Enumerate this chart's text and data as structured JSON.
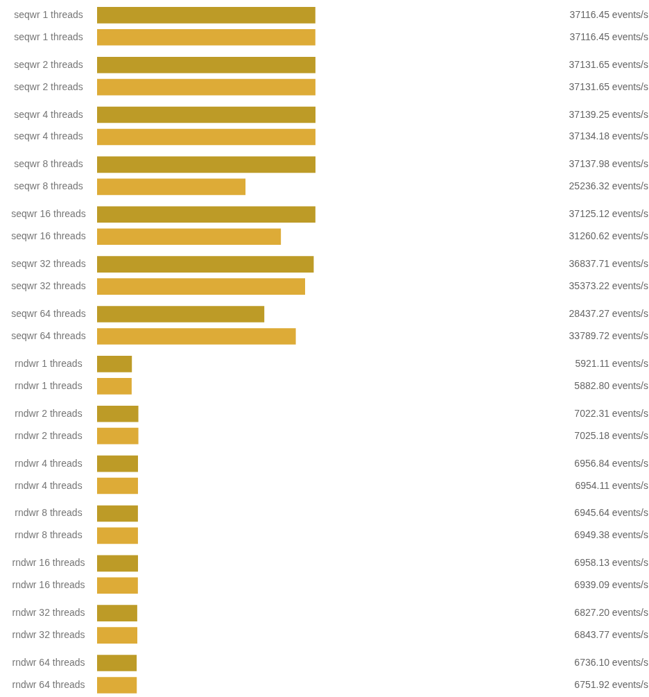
{
  "chart_data": {
    "type": "bar",
    "orientation": "horizontal",
    "categories": [
      "seqwr 1 threads",
      "seqwr 1 threads",
      "seqwr 2 threads",
      "seqwr 2 threads",
      "seqwr 4 threads",
      "seqwr 4 threads",
      "seqwr 8 threads",
      "seqwr 8 threads",
      "seqwr 16 threads",
      "seqwr 16 threads",
      "seqwr 32 threads",
      "seqwr 32 threads",
      "seqwr 64 threads",
      "seqwr 64 threads",
      "rndwr 1 threads",
      "rndwr 1 threads",
      "rndwr 2 threads",
      "rndwr 2 threads",
      "rndwr 4 threads",
      "rndwr 4 threads",
      "rndwr 8 threads",
      "rndwr 8 threads",
      "rndwr 16 threads",
      "rndwr 16 threads",
      "rndwr 32 threads",
      "rndwr 32 threads",
      "rndwr 64 threads",
      "rndwr 64 threads"
    ],
    "values": [
      37116.45,
      37116.45,
      37131.65,
      37131.65,
      37139.25,
      37134.18,
      37137.98,
      25236.32,
      37125.12,
      31260.62,
      36837.71,
      35373.22,
      28437.27,
      33789.72,
      5921.11,
      5882.8,
      7022.31,
      7025.18,
      6956.84,
      6954.11,
      6945.64,
      6949.38,
      6958.13,
      6939.09,
      6827.2,
      6843.77,
      6736.1,
      6751.92
    ],
    "colors": [
      "#bd9b27",
      "#ddab37",
      "#bd9b27",
      "#ddab37",
      "#bd9b27",
      "#ddab37",
      "#bd9b27",
      "#ddab37",
      "#bd9b27",
      "#ddab37",
      "#bd9b27",
      "#ddab37",
      "#bd9b27",
      "#ddab37",
      "#bd9b27",
      "#ddab37",
      "#bd9b27",
      "#ddab37",
      "#bd9b27",
      "#ddab37",
      "#bd9b27",
      "#ddab37",
      "#bd9b27",
      "#ddab37",
      "#bd9b27",
      "#ddab37",
      "#bd9b27",
      "#ddab37"
    ],
    "value_labels": [
      "37116.45 events/s",
      "37116.45 events/s",
      "37131.65 events/s",
      "37131.65 events/s",
      "37139.25 events/s",
      "37134.18 events/s",
      "37137.98 events/s",
      "25236.32 events/s",
      "37125.12 events/s",
      "31260.62 events/s",
      "36837.71 events/s",
      "35373.22 events/s",
      "28437.27 events/s",
      "33789.72 events/s",
      "5921.11 events/s",
      "5882.80 events/s",
      "7022.31 events/s",
      "7025.18 events/s",
      "6956.84 events/s",
      "6954.11 events/s",
      "6945.64 events/s",
      "6949.38 events/s",
      "6958.13 events/s",
      "6939.09 events/s",
      "6827.20 events/s",
      "6843.77 events/s",
      "6736.10 events/s",
      "6751.92 events/s"
    ]
  }
}
